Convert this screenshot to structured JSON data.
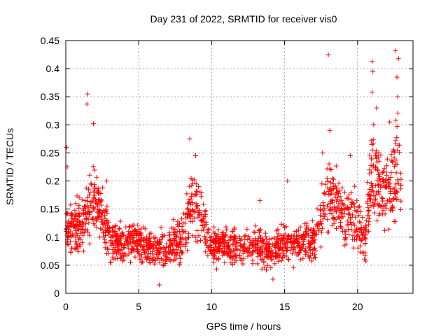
{
  "chart_data": {
    "type": "scatter",
    "title": "Day 231 of 2022, SRMTID for receiver vis0",
    "xlabel": "GPS time / hours",
    "ylabel": "SRMTID / TECUs",
    "xlim": [
      0,
      23.8
    ],
    "ylim": [
      0,
      0.45
    ],
    "xticks": [
      0,
      5,
      10,
      15,
      20
    ],
    "yticks": [
      0,
      0.05,
      0.1,
      0.15,
      0.2,
      0.25,
      0.3,
      0.35,
      0.4,
      0.45
    ],
    "xtick_labels": [
      "0",
      "5",
      "10",
      "15",
      "20"
    ],
    "ytick_labels": [
      "0",
      "0.05",
      "0.1",
      "0.15",
      "0.2",
      "0.25",
      "0.3",
      "0.35",
      "0.4",
      "0.45"
    ],
    "grid": true,
    "marker": "+",
    "series_color": "#ff0000",
    "outliers": [
      {
        "x": 1.5,
        "y": 0.355
      },
      {
        "x": 1.45,
        "y": 0.337
      },
      {
        "x": 1.9,
        "y": 0.302
      },
      {
        "x": 8.5,
        "y": 0.275
      },
      {
        "x": 18.0,
        "y": 0.425
      },
      {
        "x": 18.1,
        "y": 0.29
      },
      {
        "x": 21.0,
        "y": 0.413
      },
      {
        "x": 21.05,
        "y": 0.395
      },
      {
        "x": 21.0,
        "y": 0.358
      },
      {
        "x": 22.6,
        "y": 0.432
      },
      {
        "x": 22.8,
        "y": 0.418
      },
      {
        "x": 22.7,
        "y": 0.385
      },
      {
        "x": 22.75,
        "y": 0.35
      },
      {
        "x": 21.3,
        "y": 0.33
      },
      {
        "x": 6.4,
        "y": 0.015
      },
      {
        "x": 14.2,
        "y": 0.025
      },
      {
        "x": 0.05,
        "y": 0.26
      },
      {
        "x": 0.1,
        "y": 0.225
      },
      {
        "x": 2.8,
        "y": 0.2
      },
      {
        "x": 8.9,
        "y": 0.245
      },
      {
        "x": 9.1,
        "y": 0.19
      },
      {
        "x": 15.2,
        "y": 0.2
      },
      {
        "x": 13.3,
        "y": 0.165
      },
      {
        "x": 17.6,
        "y": 0.25
      },
      {
        "x": 19.5,
        "y": 0.245
      },
      {
        "x": 22.2,
        "y": 0.305
      }
    ],
    "trend": [
      {
        "x": 0,
        "y": 0.11
      },
      {
        "x": 1,
        "y": 0.115
      },
      {
        "x": 1.8,
        "y": 0.165
      },
      {
        "x": 2.4,
        "y": 0.15
      },
      {
        "x": 3,
        "y": 0.095
      },
      {
        "x": 4,
        "y": 0.09
      },
      {
        "x": 5,
        "y": 0.095
      },
      {
        "x": 6,
        "y": 0.075
      },
      {
        "x": 7,
        "y": 0.085
      },
      {
        "x": 8,
        "y": 0.095
      },
      {
        "x": 8.6,
        "y": 0.17
      },
      {
        "x": 9.2,
        "y": 0.14
      },
      {
        "x": 10,
        "y": 0.085
      },
      {
        "x": 11,
        "y": 0.085
      },
      {
        "x": 12,
        "y": 0.08
      },
      {
        "x": 13,
        "y": 0.085
      },
      {
        "x": 14,
        "y": 0.075
      },
      {
        "x": 15,
        "y": 0.09
      },
      {
        "x": 16,
        "y": 0.085
      },
      {
        "x": 17,
        "y": 0.095
      },
      {
        "x": 17.5,
        "y": 0.13
      },
      {
        "x": 18,
        "y": 0.17
      },
      {
        "x": 19,
        "y": 0.14
      },
      {
        "x": 20,
        "y": 0.13
      },
      {
        "x": 20.5,
        "y": 0.09
      },
      {
        "x": 21,
        "y": 0.22
      },
      {
        "x": 21.5,
        "y": 0.19
      },
      {
        "x": 22,
        "y": 0.17
      },
      {
        "x": 22.7,
        "y": 0.23
      },
      {
        "x": 23,
        "y": 0.2
      }
    ]
  }
}
